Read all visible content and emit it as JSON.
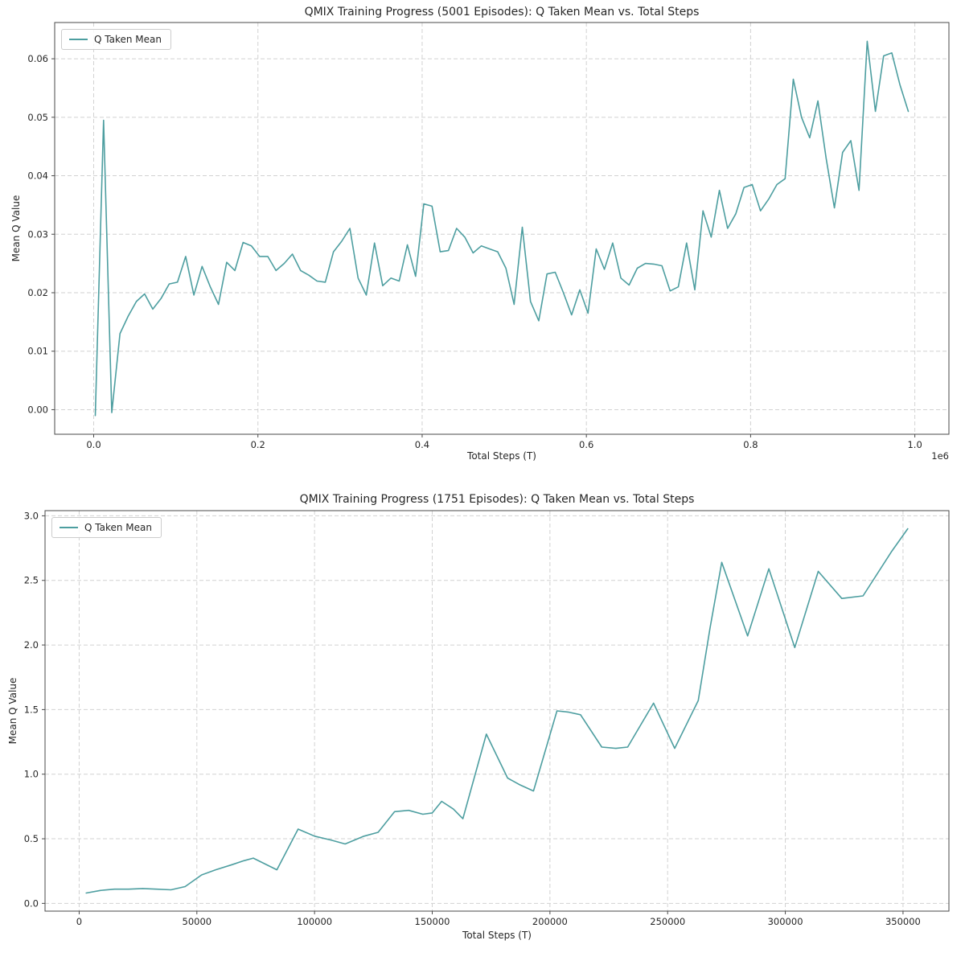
{
  "chart_data": [
    {
      "type": "line",
      "title": "QMIX Training Progress (5001 Episodes): Q Taken Mean vs. Total Steps",
      "xlabel": "Total Steps (T)",
      "ylabel": "Mean Q Value",
      "x_offset_label": "1e6",
      "legend_position": "upper left",
      "grid": "dashed",
      "line_color": "#4d9ea0",
      "xlim": [
        -47500,
        1041500
      ],
      "ylim": [
        -0.0042,
        0.0662
      ],
      "x_ticks": [
        0,
        200000,
        400000,
        600000,
        800000,
        1000000
      ],
      "x_tick_labels": [
        "0.0",
        "0.2",
        "0.4",
        "0.6",
        "0.8",
        "1.0"
      ],
      "y_ticks": [
        0.0,
        0.01,
        0.02,
        0.03,
        0.04,
        0.05,
        0.06
      ],
      "y_tick_labels": [
        "0.00",
        "0.01",
        "0.02",
        "0.03",
        "0.04",
        "0.05",
        "0.06"
      ],
      "series": [
        {
          "name": "Q Taken Mean",
          "x": [
            2000,
            12000,
            22000,
            32000,
            42000,
            52000,
            62000,
            72000,
            82000,
            92000,
            102000,
            112000,
            122000,
            132000,
            142000,
            152000,
            162000,
            172000,
            182000,
            192000,
            202000,
            212000,
            222000,
            232000,
            242000,
            252000,
            262000,
            272000,
            282000,
            292000,
            302000,
            312000,
            322000,
            332000,
            342000,
            352000,
            362000,
            372000,
            382000,
            392000,
            402000,
            412000,
            422000,
            432000,
            442000,
            452000,
            462000,
            472000,
            482000,
            492000,
            502000,
            512000,
            522000,
            532000,
            542000,
            552000,
            562000,
            572000,
            582000,
            592000,
            602000,
            612000,
            622000,
            632000,
            642000,
            652000,
            662000,
            672000,
            682000,
            692000,
            702000,
            712000,
            722000,
            732000,
            742000,
            752000,
            762000,
            772000,
            782000,
            792000,
            802000,
            812000,
            822000,
            832000,
            842000,
            852000,
            862000,
            872000,
            882000,
            892000,
            902000,
            912000,
            922000,
            932000,
            942000,
            952000,
            962000,
            972000,
            982000,
            992000
          ],
          "y": [
            -0.001,
            0.0495,
            -0.0005,
            0.013,
            0.016,
            0.0185,
            0.0198,
            0.0172,
            0.019,
            0.0215,
            0.0218,
            0.0262,
            0.0196,
            0.0245,
            0.021,
            0.018,
            0.0252,
            0.0238,
            0.0286,
            0.028,
            0.0262,
            0.0262,
            0.0238,
            0.025,
            0.0266,
            0.0238,
            0.023,
            0.022,
            0.0218,
            0.027,
            0.0288,
            0.031,
            0.0225,
            0.0196,
            0.0285,
            0.0212,
            0.0225,
            0.022,
            0.0282,
            0.0228,
            0.0352,
            0.0348,
            0.027,
            0.0272,
            0.031,
            0.0295,
            0.0268,
            0.028,
            0.0275,
            0.027,
            0.0242,
            0.018,
            0.0312,
            0.0185,
            0.0152,
            0.0232,
            0.0235,
            0.02,
            0.0162,
            0.0205,
            0.0165,
            0.0275,
            0.024,
            0.0285,
            0.0225,
            0.0213,
            0.0242,
            0.025,
            0.0249,
            0.0246,
            0.0203,
            0.021,
            0.0285,
            0.0205,
            0.034,
            0.0295,
            0.0375,
            0.031,
            0.0335,
            0.038,
            0.0385,
            0.034,
            0.036,
            0.0385,
            0.0395,
            0.0565,
            0.05,
            0.0465,
            0.0528,
            0.043,
            0.0345,
            0.044,
            0.046,
            0.0375,
            0.063,
            0.051,
            0.0605,
            0.061,
            0.0555,
            0.051
          ]
        }
      ]
    },
    {
      "type": "line",
      "title": "QMIX Training Progress (1751 Episodes): Q Taken Mean vs. Total Steps",
      "xlabel": "Total Steps (T)",
      "ylabel": "Mean Q Value",
      "x_offset_label": "",
      "legend_position": "upper left",
      "grid": "dashed",
      "line_color": "#4d9ea0",
      "xlim": [
        -14500,
        369500
      ],
      "ylim": [
        -0.06,
        3.04
      ],
      "x_ticks": [
        0,
        50000,
        100000,
        150000,
        200000,
        250000,
        300000,
        350000
      ],
      "x_tick_labels": [
        "0",
        "50000",
        "100000",
        "150000",
        "200000",
        "250000",
        "300000",
        "350000"
      ],
      "y_ticks": [
        0.0,
        0.5,
        1.0,
        1.5,
        2.0,
        2.5,
        3.0
      ],
      "y_tick_labels": [
        "0.0",
        "0.5",
        "1.0",
        "1.5",
        "2.0",
        "2.5",
        "3.0"
      ],
      "series": [
        {
          "name": "Q Taken Mean",
          "x": [
            3000,
            9000,
            15000,
            21000,
            27000,
            33000,
            39000,
            45000,
            52000,
            58000,
            65000,
            70000,
            74000,
            84000,
            93000,
            100000,
            107000,
            113000,
            121000,
            127000,
            134000,
            140000,
            146000,
            150000,
            154000,
            159000,
            163000,
            173000,
            182000,
            187000,
            193000,
            203000,
            208000,
            213000,
            222000,
            228000,
            233000,
            244000,
            253000,
            263000,
            268000,
            273000,
            284000,
            293000,
            304000,
            314000,
            324000,
            333000,
            345000,
            352000
          ],
          "y": [
            0.08,
            0.1,
            0.11,
            0.11,
            0.115,
            0.11,
            0.105,
            0.13,
            0.22,
            0.26,
            0.3,
            0.33,
            0.35,
            0.26,
            0.575,
            0.52,
            0.49,
            0.46,
            0.52,
            0.55,
            0.71,
            0.72,
            0.69,
            0.7,
            0.79,
            0.73,
            0.655,
            1.31,
            0.97,
            0.92,
            0.87,
            1.49,
            1.48,
            1.46,
            1.21,
            1.2,
            1.21,
            1.55,
            1.2,
            1.57,
            2.13,
            2.64,
            2.07,
            2.59,
            1.98,
            2.57,
            2.36,
            2.38,
            2.72,
            2.9
          ]
        }
      ]
    }
  ]
}
